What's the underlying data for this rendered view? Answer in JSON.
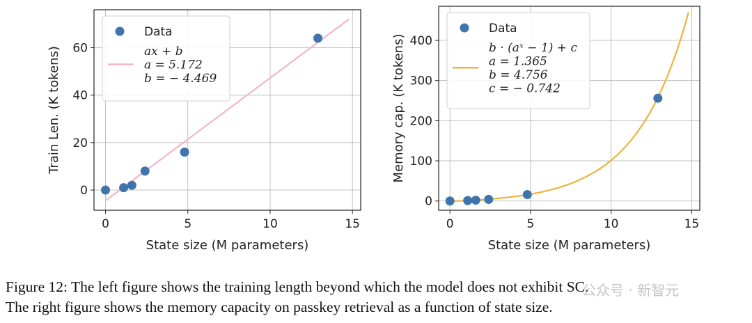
{
  "chart_data": [
    {
      "type": "scatter",
      "xlabel": "State size (M parameters)",
      "ylabel": "Train Len. (K tokens)",
      "xlim": [
        -0.7,
        15.5
      ],
      "ylim": [
        -8.5,
        76
      ],
      "xticks": [
        0,
        5,
        10,
        15
      ],
      "yticks": [
        0,
        20,
        40,
        60
      ],
      "grid": true,
      "series": [
        {
          "name": "Data",
          "color": "#3f74ad",
          "points": [
            {
              "x": 0.0,
              "y": 0.0
            },
            {
              "x": 1.1,
              "y": 1.0
            },
            {
              "x": 1.6,
              "y": 2.0
            },
            {
              "x": 2.4,
              "y": 8.0
            },
            {
              "x": 4.8,
              "y": 16.0
            },
            {
              "x": 12.9,
              "y": 64.0
            }
          ]
        },
        {
          "type": "fit",
          "color": "#f0b7c4",
          "formula": "ax+b",
          "params": {
            "a": 5.172,
            "b": -4.469
          },
          "x_range": [
            0,
            14.8
          ]
        }
      ],
      "legend": {
        "position": "top-left",
        "data_label": "Data",
        "fit_lines": [
          "ax + b",
          "a = 5.172",
          "b = − 4.469"
        ]
      }
    },
    {
      "type": "scatter",
      "xlabel": "State size (M parameters)",
      "ylabel": "Memory cap. (K tokens)",
      "xlim": [
        -0.7,
        15.5
      ],
      "ylim": [
        -23,
        485
      ],
      "xticks": [
        0,
        5,
        10,
        15
      ],
      "yticks": [
        0,
        100,
        200,
        300,
        400
      ],
      "grid": true,
      "series": [
        {
          "name": "Data",
          "color": "#3f74ad",
          "points": [
            {
              "x": 0.0,
              "y": 0.0
            },
            {
              "x": 1.1,
              "y": 1.0
            },
            {
              "x": 1.6,
              "y": 2.0
            },
            {
              "x": 2.4,
              "y": 4.0
            },
            {
              "x": 4.8,
              "y": 16.0
            },
            {
              "x": 12.9,
              "y": 256.0
            }
          ]
        },
        {
          "type": "fit",
          "color": "#f0b23a",
          "formula": "b·(a^x−1)+c",
          "params": {
            "a": 1.365,
            "b": 4.756,
            "c": -0.742
          },
          "x_range": [
            0,
            14.8
          ]
        }
      ],
      "legend": {
        "position": "top-left",
        "data_label": "Data",
        "fit_lines": [
          "b · (aˣ − 1) + c",
          "a = 1.365",
          "b = 4.756",
          "c = − 0.742"
        ]
      }
    }
  ],
  "caption": {
    "line1": "Figure 12: The left figure shows the training length beyond which the model does not exhibit SC.",
    "line2": "The right figure shows the memory capacity on passkey retrieval as a function of state size."
  },
  "watermark": "公众号 · 新智元"
}
